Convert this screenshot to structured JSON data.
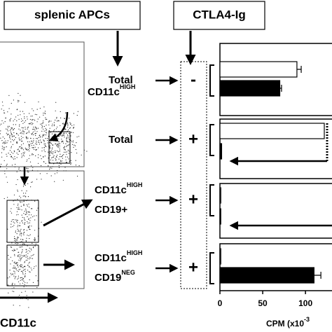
{
  "figure": {
    "left_box": "splenic APCs",
    "right_box": "CTLA4-Ig",
    "gate_label": {
      "text": "CD11c",
      "sup": "HIGH"
    },
    "axis_label": "CD11c"
  },
  "rows": [
    {
      "lines": [
        {
          "text": "Total"
        }
      ],
      "ctla4": "-"
    },
    {
      "lines": [
        {
          "text": "Total"
        }
      ],
      "ctla4": "+"
    },
    {
      "lines": [
        {
          "text": "CD11c",
          "sup": "HIGH"
        },
        {
          "text": "CD19+"
        }
      ],
      "ctla4": "+"
    },
    {
      "lines": [
        {
          "text": "CD11c",
          "sup": "HIGH"
        },
        {
          "text": "CD19",
          "sup": "NEG"
        }
      ],
      "ctla4": "+"
    }
  ],
  "chart_data": {
    "type": "bar",
    "orientation": "horizontal",
    "xlabel": {
      "text": "CPM (x10",
      "sup": "-3"
    },
    "xlim": [
      0,
      131
    ],
    "xticks": [
      0,
      50,
      100
    ],
    "series": [
      {
        "color": "#ffffff",
        "values": [
          90,
          122,
          1,
          1
        ],
        "errors": [
          5,
          null,
          null,
          null
        ]
      },
      {
        "color": "#000000",
        "values": [
          70,
          2,
          1,
          110
        ],
        "errors": [
          2,
          null,
          null,
          8
        ]
      }
    ]
  }
}
